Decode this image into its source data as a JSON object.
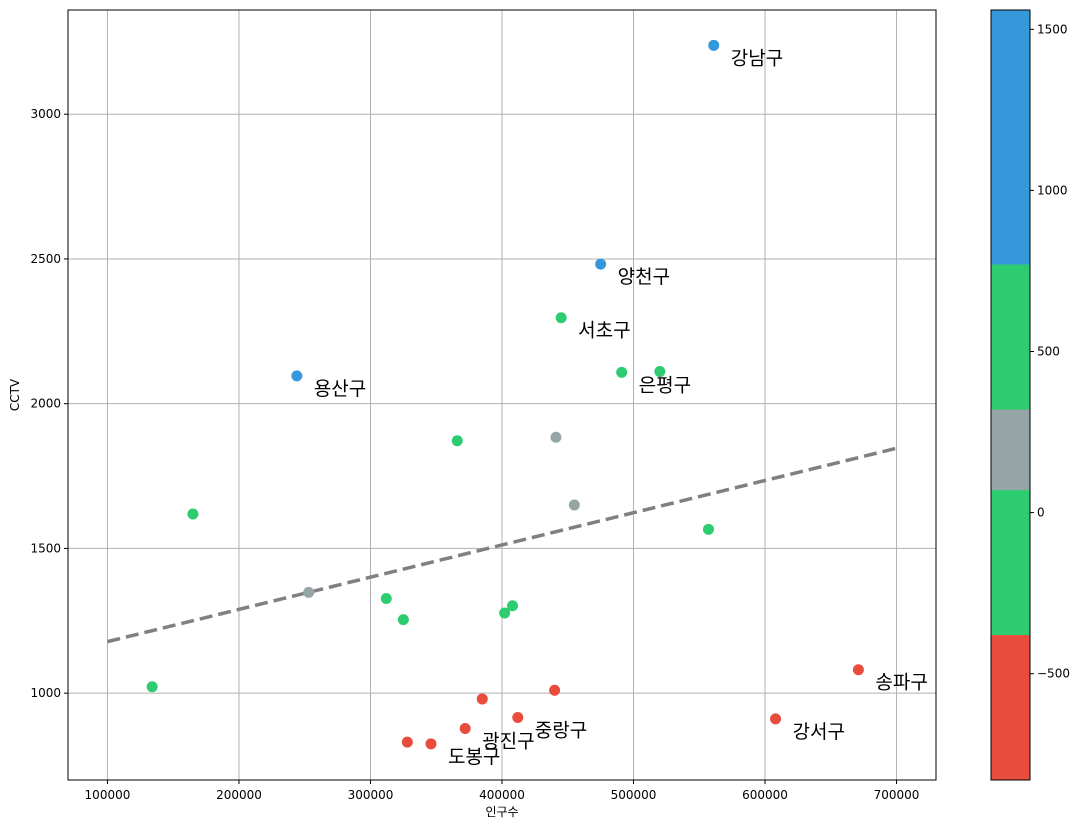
{
  "chart_data": {
    "type": "scatter",
    "xlabel": "인구수",
    "ylabel": "CCTV",
    "xlim": [
      70000,
      730000
    ],
    "ylim": [
      700,
      3360
    ],
    "xticks": [
      100000,
      200000,
      300000,
      400000,
      500000,
      600000,
      700000
    ],
    "yticks": [
      1000,
      1500,
      2000,
      2500,
      3000
    ],
    "grid": true,
    "points": [
      {
        "x": 561000,
        "y": 3238,
        "cat": "blue"
      },
      {
        "x": 475000,
        "y": 2482,
        "cat": "blue"
      },
      {
        "x": 445000,
        "y": 2297,
        "cat": "green"
      },
      {
        "x": 244000,
        "y": 2096,
        "cat": "blue"
      },
      {
        "x": 491000,
        "y": 2108,
        "cat": "green"
      },
      {
        "x": 520000,
        "y": 2111,
        "cat": "green"
      },
      {
        "x": 366000,
        "y": 1872,
        "cat": "green"
      },
      {
        "x": 441000,
        "y": 1884,
        "cat": "gray"
      },
      {
        "x": 455000,
        "y": 1650,
        "cat": "gray"
      },
      {
        "x": 165000,
        "y": 1619,
        "cat": "green"
      },
      {
        "x": 557000,
        "y": 1566,
        "cat": "green"
      },
      {
        "x": 253000,
        "y": 1348,
        "cat": "gray"
      },
      {
        "x": 312000,
        "y": 1327,
        "cat": "green"
      },
      {
        "x": 408000,
        "y": 1302,
        "cat": "green"
      },
      {
        "x": 402000,
        "y": 1277,
        "cat": "green"
      },
      {
        "x": 325000,
        "y": 1254,
        "cat": "green"
      },
      {
        "x": 134000,
        "y": 1022,
        "cat": "green"
      },
      {
        "x": 671000,
        "y": 1081,
        "cat": "red"
      },
      {
        "x": 440000,
        "y": 1010,
        "cat": "red"
      },
      {
        "x": 385000,
        "y": 980,
        "cat": "red"
      },
      {
        "x": 608000,
        "y": 911,
        "cat": "red"
      },
      {
        "x": 412000,
        "y": 916,
        "cat": "red"
      },
      {
        "x": 372000,
        "y": 878,
        "cat": "red"
      },
      {
        "x": 328000,
        "y": 831,
        "cat": "red"
      },
      {
        "x": 346000,
        "y": 825,
        "cat": "red"
      }
    ],
    "annotations": [
      {
        "text": "강남구",
        "x": 561000,
        "y": 3238
      },
      {
        "text": "양천구",
        "x": 475000,
        "y": 2482
      },
      {
        "text": "서초구",
        "x": 445000,
        "y": 2297
      },
      {
        "text": "용산구",
        "x": 244000,
        "y": 2096
      },
      {
        "text": "은평구",
        "x": 491000,
        "y": 2108
      },
      {
        "text": "송파구",
        "x": 671000,
        "y": 1081
      },
      {
        "text": "강서구",
        "x": 608000,
        "y": 911
      },
      {
        "text": "중랑구",
        "x": 412000,
        "y": 916
      },
      {
        "text": "광진구",
        "x": 372000,
        "y": 878
      },
      {
        "text": "도봉구",
        "x": 346000,
        "y": 825
      }
    ],
    "trend_line": {
      "x": [
        100000,
        700000
      ],
      "y": [
        1178,
        1846
      ],
      "style": "dashed",
      "color": "#808080"
    },
    "colorbar": {
      "range": [
        -830,
        1560
      ],
      "ticks": [
        -500,
        0,
        500,
        1000,
        1500
      ],
      "segments": [
        {
          "from": -830,
          "to": -380,
          "color": "#e74c3c"
        },
        {
          "from": -380,
          "to": 70,
          "color": "#2ecc71"
        },
        {
          "from": 70,
          "to": 320,
          "color": "#95a5a6"
        },
        {
          "from": 320,
          "to": 770,
          "color": "#2ecc71"
        },
        {
          "from": 770,
          "to": 1560,
          "color": "#3498db"
        }
      ]
    },
    "colors": {
      "red": "#e74c3c",
      "green": "#2ecc71",
      "gray": "#95a5a6",
      "blue": "#3498db"
    }
  }
}
